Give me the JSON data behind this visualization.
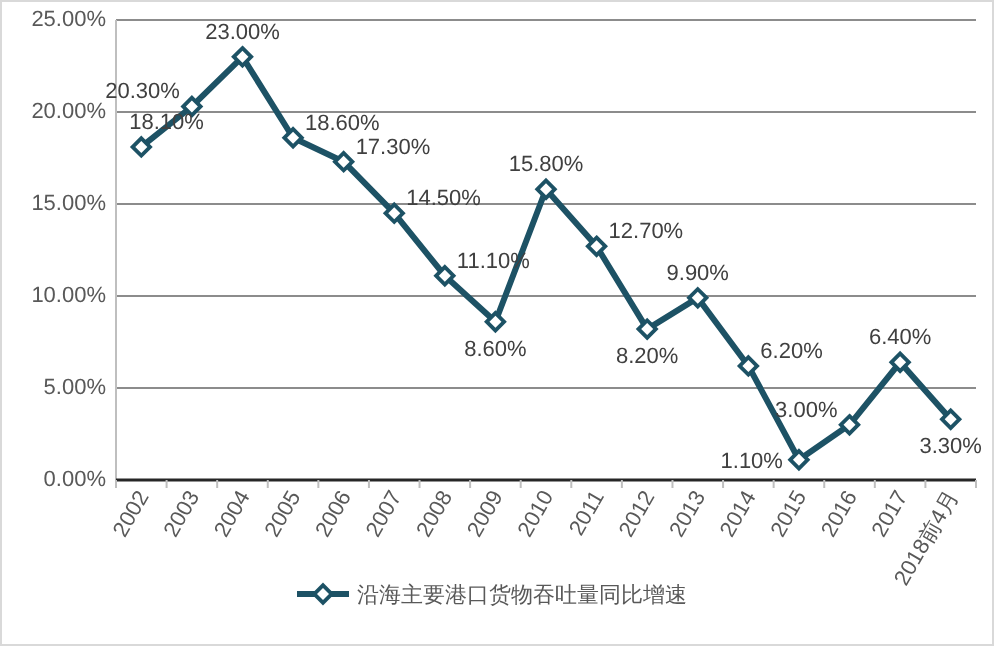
{
  "chart_data": {
    "type": "line",
    "categories": [
      "2002",
      "2003",
      "2004",
      "2005",
      "2006",
      "2007",
      "2008",
      "2009",
      "2010",
      "2011",
      "2012",
      "2013",
      "2014",
      "2015",
      "2016",
      "2017",
      "2018前4月"
    ],
    "series": [
      {
        "name": "沿海主要港口货物吞吐量同比增速",
        "color": "#1d5265",
        "values": [
          18.1,
          20.3,
          23.0,
          18.6,
          17.3,
          14.5,
          11.1,
          8.6,
          15.8,
          12.7,
          8.2,
          9.9,
          6.2,
          1.1,
          3.0,
          6.4,
          3.3
        ],
        "value_labels": [
          "18.10%",
          "20.30%",
          "23.00%",
          "18.60%",
          "17.30%",
          "14.50%",
          "11.10%",
          "8.60%",
          "15.80%",
          "12.70%",
          "8.20%",
          "9.90%",
          "6.20%",
          "1.10%",
          "3.00%",
          "6.40%",
          "3.30%"
        ]
      }
    ],
    "ylim": [
      0,
      25
    ],
    "yticks": [
      {
        "value": 0,
        "label": "0.00%"
      },
      {
        "value": 5,
        "label": "5.00%"
      },
      {
        "value": 10,
        "label": "10.00%"
      },
      {
        "value": 15,
        "label": "15.00%"
      },
      {
        "value": 20,
        "label": "20.00%"
      },
      {
        "value": 25,
        "label": "25.00%"
      }
    ],
    "marker": "diamond",
    "line_style": "solid",
    "legend": "bottom",
    "grid": "y"
  }
}
